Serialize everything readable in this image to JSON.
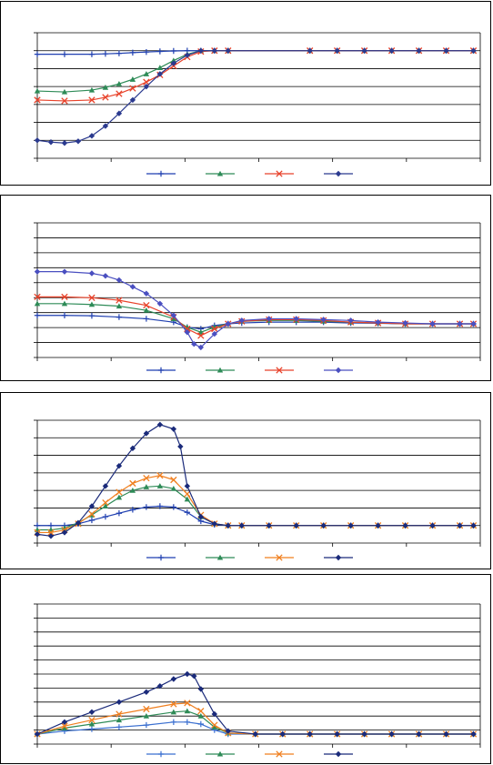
{
  "chart_data": [
    {
      "type": "line",
      "title": "",
      "xlabel": "",
      "ylabel": "",
      "xlim": [
        0,
        65
      ],
      "ylim": [
        -120,
        20
      ],
      "grid": true,
      "legend": "bottom-center",
      "series": [
        {
          "marker": "plus",
          "color": "#1f3fb0",
          "x": [
            0,
            4,
            8,
            10,
            12,
            14,
            16,
            18,
            20,
            22,
            24,
            26,
            28,
            40,
            44,
            48,
            52,
            56,
            60,
            64
          ],
          "y": [
            -4,
            -4,
            -4,
            -3.5,
            -3,
            -2.2,
            -1.5,
            -0.8,
            -0.3,
            0,
            0,
            0,
            0,
            0,
            0,
            0,
            0,
            0,
            0,
            0
          ]
        },
        {
          "marker": "triangle",
          "color": "#2e8b57",
          "x": [
            0,
            4,
            8,
            10,
            12,
            14,
            16,
            18,
            20,
            22,
            24,
            26,
            28,
            40,
            44,
            48,
            52,
            56,
            60,
            64
          ],
          "y": [
            -45,
            -46,
            -44,
            -41,
            -37,
            -32,
            -26,
            -19,
            -11,
            -4,
            0,
            0,
            0,
            0,
            0,
            0,
            0,
            0,
            0,
            0
          ]
        },
        {
          "marker": "x",
          "color": "#e8422a",
          "x": [
            0,
            4,
            8,
            10,
            12,
            14,
            16,
            18,
            20,
            22,
            24,
            26,
            28,
            40,
            44,
            48,
            52,
            56,
            60,
            64
          ],
          "y": [
            -55,
            -56,
            -55,
            -52,
            -48,
            -42,
            -35,
            -27,
            -17,
            -7,
            -1,
            0,
            0,
            0,
            0,
            0,
            0,
            0,
            0,
            0
          ]
        },
        {
          "marker": "diamond",
          "color": "#2b3a8f",
          "x": [
            0,
            2,
            4,
            6,
            8,
            10,
            12,
            14,
            16,
            18,
            20,
            22,
            24,
            26,
            28,
            40,
            44,
            48,
            52,
            56,
            60,
            64
          ],
          "y": [
            -100,
            -102,
            -103,
            -101,
            -95,
            -84,
            -70,
            -55,
            -40,
            -26,
            -14,
            -5,
            0,
            0,
            0,
            0,
            0,
            0,
            0,
            0,
            0,
            0
          ]
        }
      ]
    },
    {
      "type": "line",
      "title": "",
      "xlabel": "",
      "ylabel": "",
      "xlim": [
        0,
        65
      ],
      "ylim": [
        -20,
        60
      ],
      "grid": true,
      "legend": "bottom-center",
      "series": [
        {
          "marker": "plus",
          "color": "#1f3fb0",
          "x": [
            0,
            4,
            8,
            12,
            16,
            20,
            22,
            24,
            26,
            28,
            30,
            34,
            38,
            42,
            46,
            50,
            54,
            58,
            62,
            64
          ],
          "y": [
            5,
            5,
            4.8,
            4,
            3,
            1,
            -2,
            -3,
            -1,
            0,
            0.5,
            1,
            1,
            1,
            0.5,
            0.3,
            0,
            0,
            0,
            0
          ]
        },
        {
          "marker": "triangle",
          "color": "#2e8b57",
          "x": [
            0,
            4,
            8,
            12,
            16,
            20,
            22,
            24,
            26,
            28,
            30,
            34,
            38,
            42,
            46,
            50,
            54,
            58,
            62,
            64
          ],
          "y": [
            12,
            12,
            11.5,
            10.5,
            8,
            3,
            -2,
            -5,
            -2,
            0,
            1.5,
            2,
            2,
            1.5,
            1,
            0.5,
            0,
            0,
            0,
            0
          ]
        },
        {
          "marker": "x",
          "color": "#e8422a",
          "x": [
            0,
            4,
            8,
            12,
            16,
            20,
            22,
            24,
            26,
            28,
            30,
            34,
            38,
            42,
            46,
            50,
            54,
            58,
            62,
            64
          ],
          "y": [
            16,
            16,
            15.5,
            14,
            11,
            4,
            -3,
            -7,
            -3,
            0,
            1.5,
            2.5,
            2.5,
            2,
            1,
            0.5,
            0,
            0,
            0,
            0
          ]
        },
        {
          "marker": "diamond",
          "color": "#4a4fc0",
          "x": [
            0,
            4,
            8,
            10,
            12,
            14,
            16,
            18,
            20,
            22,
            23,
            24,
            26,
            28,
            30,
            34,
            38,
            42,
            46,
            50,
            54,
            58,
            62,
            64
          ],
          "y": [
            31,
            31,
            30,
            28.5,
            26,
            22,
            18,
            12,
            5,
            -5,
            -12,
            -14,
            -6,
            0,
            2,
            3,
            3,
            2.5,
            2,
            1,
            0.5,
            0,
            0,
            0
          ]
        }
      ]
    },
    {
      "type": "line",
      "title": "",
      "xlabel": "",
      "ylabel": "",
      "xlim": [
        0,
        65
      ],
      "ylim": [
        -20,
        120
      ],
      "grid": true,
      "legend": "bottom-center",
      "series": [
        {
          "marker": "plus",
          "color": "#1f3fb0",
          "x": [
            0,
            2,
            4,
            6,
            8,
            10,
            12,
            14,
            16,
            18,
            20,
            22,
            24,
            26,
            28,
            30,
            34,
            38,
            42,
            46,
            50,
            54,
            58,
            62,
            64
          ],
          "y": [
            0,
            0,
            0,
            2,
            6,
            10,
            14,
            18,
            21,
            22,
            21,
            15,
            5,
            1,
            0,
            0,
            0,
            0,
            0,
            0,
            0,
            0,
            0,
            0,
            0
          ]
        },
        {
          "marker": "triangle",
          "color": "#2e8b57",
          "x": [
            0,
            2,
            4,
            6,
            8,
            10,
            12,
            14,
            16,
            18,
            20,
            22,
            24,
            26,
            28,
            30,
            34,
            38,
            42,
            46,
            50,
            54,
            58,
            62,
            64
          ],
          "y": [
            -5,
            -5,
            -3,
            3,
            12,
            22,
            32,
            40,
            44,
            45,
            42,
            30,
            10,
            2,
            0,
            0,
            0,
            0,
            0,
            0,
            0,
            0,
            0,
            0,
            0
          ]
        },
        {
          "marker": "x",
          "color": "#f07f1f",
          "x": [
            0,
            2,
            4,
            6,
            8,
            10,
            12,
            14,
            16,
            18,
            20,
            22,
            24,
            26,
            28,
            30,
            34,
            38,
            42,
            46,
            50,
            54,
            58,
            62,
            64
          ],
          "y": [
            -8,
            -8,
            -5,
            2,
            13,
            26,
            38,
            48,
            54,
            57,
            52,
            36,
            12,
            2,
            0,
            0,
            0,
            0,
            0,
            0,
            0,
            0,
            0,
            0,
            0
          ]
        },
        {
          "marker": "diamond",
          "color": "#1a2a7a",
          "x": [
            0,
            2,
            4,
            6,
            8,
            10,
            12,
            14,
            16,
            18,
            20,
            21,
            22,
            24,
            26,
            28,
            30,
            34,
            38,
            42,
            46,
            50,
            54,
            58,
            62,
            64
          ],
          "y": [
            -10,
            -12,
            -8,
            3,
            22,
            45,
            68,
            88,
            105,
            115,
            110,
            90,
            45,
            10,
            2,
            0,
            0,
            0,
            0,
            0,
            0,
            0,
            0,
            0,
            0,
            0
          ]
        }
      ]
    },
    {
      "type": "line",
      "title": "",
      "xlabel": "",
      "ylabel": "",
      "xlim": [
        0,
        65
      ],
      "ylim": [
        -10,
        130
      ],
      "grid": true,
      "legend": "bottom-center",
      "series": [
        {
          "marker": "plus",
          "color": "#3a6fd0",
          "x": [
            0,
            4,
            8,
            12,
            16,
            20,
            22,
            24,
            26,
            28,
            32,
            36,
            40,
            44,
            48,
            52,
            56,
            60,
            64
          ],
          "y": [
            0,
            3,
            5,
            7,
            9,
            12,
            12,
            10,
            4,
            0,
            0,
            0,
            0,
            0,
            0,
            0,
            0,
            0,
            0
          ]
        },
        {
          "marker": "triangle",
          "color": "#2e8b57",
          "x": [
            0,
            4,
            8,
            12,
            16,
            20,
            22,
            24,
            26,
            28,
            32,
            36,
            40,
            44,
            48,
            52,
            56,
            60,
            64
          ],
          "y": [
            0,
            6,
            10,
            14,
            18,
            22,
            23,
            18,
            7,
            1,
            0,
            0,
            0,
            0,
            0,
            0,
            0,
            0,
            0
          ]
        },
        {
          "marker": "x",
          "color": "#f07f1f",
          "x": [
            0,
            4,
            8,
            12,
            16,
            20,
            22,
            24,
            26,
            28,
            32,
            36,
            40,
            44,
            48,
            52,
            56,
            60,
            64
          ],
          "y": [
            0,
            8,
            14,
            20,
            25,
            30,
            31,
            23,
            9,
            1,
            0,
            0,
            0,
            0,
            0,
            0,
            0,
            0,
            0
          ]
        },
        {
          "marker": "diamond",
          "color": "#1a2a7a",
          "x": [
            0,
            4,
            8,
            12,
            16,
            18,
            20,
            22,
            23,
            24,
            26,
            28,
            32,
            36,
            40,
            44,
            48,
            52,
            56,
            60,
            64
          ],
          "y": [
            0,
            12,
            22,
            32,
            42,
            48,
            55,
            60,
            58,
            45,
            20,
            3,
            0,
            0,
            0,
            0,
            0,
            0,
            0,
            0,
            0
          ]
        }
      ]
    }
  ]
}
